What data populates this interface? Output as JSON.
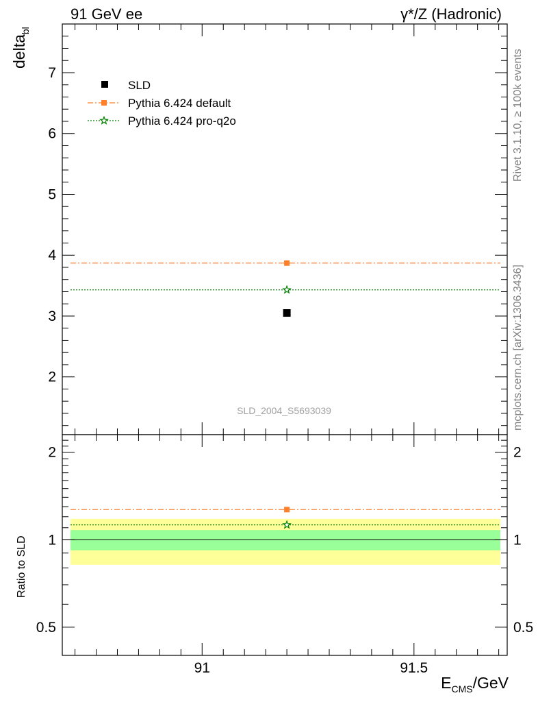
{
  "header": {
    "left": "91 GeV ee",
    "right": "γ*/Z (Hadronic)"
  },
  "side_notes": {
    "rivet": "Rivet 3.1.10, ≥ 100k events",
    "mcplots": "mcplots.cern.ch [arXiv:1306.3436]"
  },
  "analysis_id": "SLD_2004_S5693039",
  "colors": {
    "data": "#000000",
    "pythia_default": "#ff7f2a",
    "pythia_proq2o": "#008000",
    "band_inner": "#99ff99",
    "band_outer": "#ffff99"
  },
  "chart_data": [
    {
      "panel": "main",
      "type": "scatter",
      "ylabel_base": "delta",
      "ylabel_sub": "bl",
      "xlim": [
        90.67,
        91.72
      ],
      "ylim": [
        1.05,
        7.8
      ],
      "yticks": [
        2,
        3,
        4,
        5,
        6,
        7
      ],
      "x_bin": [
        90.67,
        91.72
      ],
      "legend_position": "top-left",
      "series": [
        {
          "name": "SLD",
          "x": [
            91.2
          ],
          "y": [
            3.05
          ]
        },
        {
          "name": "Pythia 6.424 default",
          "x": [
            91.2
          ],
          "y": [
            3.87
          ]
        },
        {
          "name": "Pythia 6.424 pro-q2o",
          "x": [
            91.2
          ],
          "y": [
            3.43
          ]
        }
      ]
    },
    {
      "panel": "ratio",
      "type": "scatter",
      "ylabel": "Ratio to SLD",
      "xlabel_base": "E",
      "xlabel_sub": "CMS",
      "xlabel_suffix": "/GeV",
      "xlim": [
        90.67,
        91.72
      ],
      "ylim": [
        0.4,
        2.3
      ],
      "ylog": true,
      "yticks": [
        0.5,
        1,
        2
      ],
      "xticks": [
        91,
        91.5
      ],
      "band_inner": [
        0.92,
        1.08
      ],
      "band_outer": [
        0.82,
        1.18
      ],
      "series": [
        {
          "name": "Pythia 6.424 default",
          "x": [
            91.2
          ],
          "y": [
            1.27
          ]
        },
        {
          "name": "Pythia 6.424 pro-q2o",
          "x": [
            91.2
          ],
          "y": [
            1.125
          ]
        }
      ]
    }
  ]
}
